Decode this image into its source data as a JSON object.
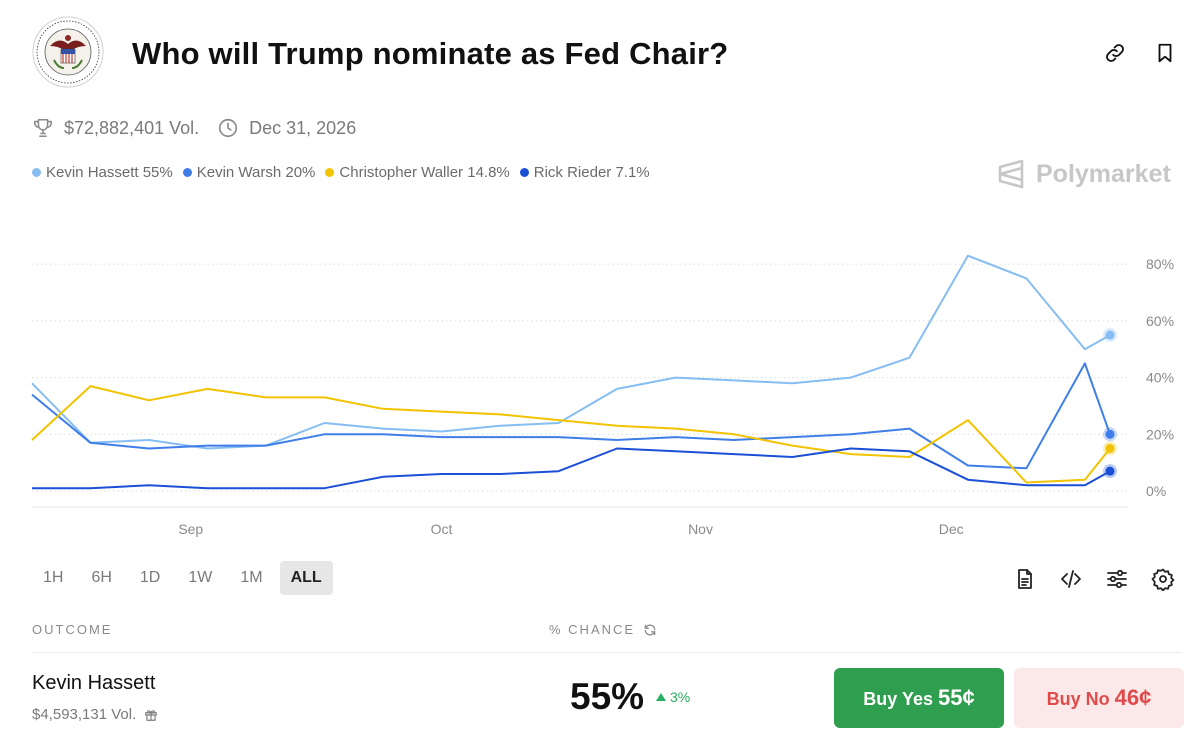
{
  "market": {
    "title": "Who will Trump nominate as Fed Chair?",
    "logo_icon": "federal-reserve-seal-icon",
    "volume": "$72,882,401 Vol.",
    "end_date": "Dec 31, 2026",
    "brand": "Polymarket"
  },
  "legend": [
    {
      "label": "Kevin Hassett 55%",
      "color": "#86bdf2"
    },
    {
      "label": "Kevin Warsh 20%",
      "color": "#3f7ee8"
    },
    {
      "label": "Christopher Waller 14.8%",
      "color": "#f2c300"
    },
    {
      "label": "Rick Rieder 7.1%",
      "color": "#1a4fd6"
    }
  ],
  "time_ranges": {
    "items": [
      "1H",
      "6H",
      "1D",
      "1W",
      "1M",
      "ALL"
    ],
    "selected": "ALL"
  },
  "table": {
    "outcome_header": "OUTCOME",
    "chance_header": "% CHANCE"
  },
  "outcome": {
    "name": "Kevin Hassett",
    "volume": "$4,593,131 Vol.",
    "chance": "55%",
    "change": "3%",
    "buy_yes_label": "Buy Yes",
    "buy_yes_price": "55¢",
    "buy_no_label": "Buy No",
    "buy_no_price": "46¢"
  },
  "chart_data": {
    "type": "line",
    "x_unit": "date",
    "x_tick_labels": [
      "Sep",
      "Oct",
      "Nov",
      "Dec"
    ],
    "y_tick_labels": [
      "80%",
      "60%",
      "40%",
      "20%",
      "0%"
    ],
    "ylim": [
      0,
      85
    ],
    "grid": true,
    "legend_position": "top-left",
    "x": [
      "Aug 13",
      "Aug 20",
      "Aug 27",
      "Sep 3",
      "Sep 10",
      "Sep 17",
      "Sep 24",
      "Oct 1",
      "Oct 8",
      "Oct 15",
      "Oct 22",
      "Oct 29",
      "Nov 5",
      "Nov 12",
      "Nov 19",
      "Nov 26",
      "Dec 3",
      "Dec 10",
      "Dec 17",
      "Dec 20"
    ],
    "series": [
      {
        "name": "Kevin Hassett",
        "color": "#86bdf2",
        "values": [
          38,
          17,
          18,
          15,
          16,
          24,
          22,
          21,
          23,
          24,
          36,
          40,
          39,
          38,
          40,
          47,
          83,
          75,
          50,
          55
        ]
      },
      {
        "name": "Kevin Warsh",
        "color": "#3f7ee8",
        "values": [
          34,
          17,
          15,
          16,
          16,
          20,
          20,
          19,
          19,
          19,
          18,
          19,
          18,
          19,
          20,
          22,
          9,
          8,
          45,
          20
        ]
      },
      {
        "name": "Christopher Waller",
        "color": "#f2c300",
        "values": [
          18,
          37,
          32,
          36,
          33,
          33,
          29,
          28,
          27,
          25,
          23,
          22,
          20,
          16,
          13,
          12,
          25,
          3,
          4,
          15
        ]
      },
      {
        "name": "Rick Rieder",
        "color": "#1a4fd6",
        "values": [
          1,
          1,
          2,
          1,
          1,
          1,
          5,
          6,
          6,
          7,
          15,
          14,
          13,
          12,
          15,
          14,
          4,
          2,
          2,
          7
        ]
      }
    ]
  }
}
